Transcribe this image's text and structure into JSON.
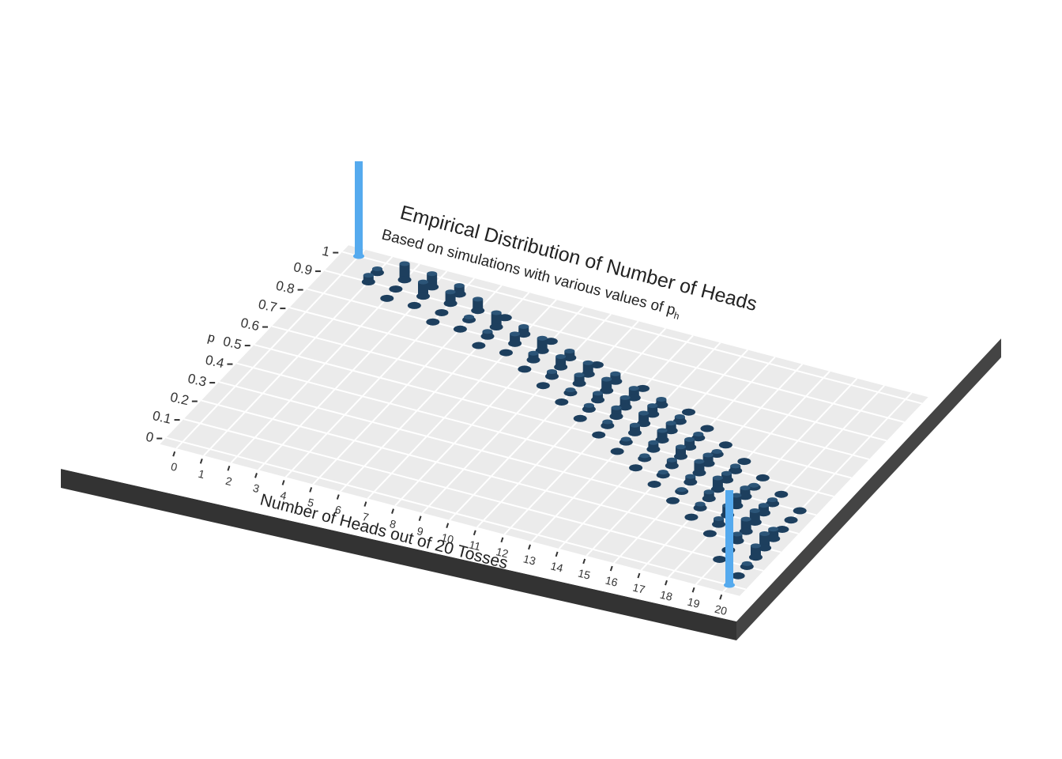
{
  "chart_data": {
    "type": "bar",
    "style": "3d-isometric-lollipop",
    "title": "Empirical Distribution of Number of Heads",
    "subtitle": "Based on simulations with various values of p",
    "subtitle_sub": "h",
    "xlabel": "Number of Heads out of 20 Tosses",
    "ylabel": "p",
    "x_ticks": [
      0,
      1,
      2,
      3,
      4,
      5,
      6,
      7,
      8,
      9,
      10,
      11,
      12,
      13,
      14,
      15,
      16,
      17,
      18,
      19,
      20
    ],
    "x_tick_labels": [
      "0",
      "1",
      "2",
      "3",
      "4",
      "5",
      "6",
      "7",
      "8",
      "9",
      "10",
      "11",
      "12",
      "13",
      "14",
      "15",
      "16",
      "17",
      "18",
      "19",
      "20"
    ],
    "y_ticks": [
      0,
      0.1,
      0.2,
      0.3,
      0.4,
      0.5,
      0.6,
      0.7,
      0.8,
      0.9,
      1
    ],
    "y_tick_labels": [
      "0",
      "0.1",
      "0.2",
      "0.3",
      "0.4",
      "0.5",
      "0.6",
      "0.7",
      "0.8",
      "0.9",
      "1"
    ],
    "xlim": [
      0,
      20
    ],
    "ylim": [
      0,
      1
    ],
    "grid": true,
    "colors": {
      "bar": "#1d3f5e",
      "highlight": "#55aaee",
      "panel": "#ebebeb",
      "slab_top": "#ffffff",
      "slab_side": "#333333"
    },
    "points": [
      {
        "x": 0,
        "p": 1.0,
        "v": 1.0,
        "highlight": true
      },
      {
        "x": 1,
        "p": 0.95,
        "v": 0.04
      },
      {
        "x": 2,
        "p": 0.95,
        "v": 0.17
      },
      {
        "x": 3,
        "p": 0.95,
        "v": 0.14
      },
      {
        "x": 4,
        "p": 0.95,
        "v": 0.09
      },
      {
        "x": 1,
        "p": 0.9,
        "v": 0.07
      },
      {
        "x": 2,
        "p": 0.9,
        "v": 0.0
      },
      {
        "x": 3,
        "p": 0.9,
        "v": 0.15
      },
      {
        "x": 4,
        "p": 0.9,
        "v": 0.12
      },
      {
        "x": 5,
        "p": 0.9,
        "v": 0.12
      },
      {
        "x": 6,
        "p": 0.9,
        "v": 0.0
      },
      {
        "x": 2,
        "p": 0.85,
        "v": 0.0
      },
      {
        "x": 3,
        "p": 0.85,
        "v": 0.0
      },
      {
        "x": 4,
        "p": 0.85,
        "v": 0.0
      },
      {
        "x": 5,
        "p": 0.85,
        "v": 0.03
      },
      {
        "x": 6,
        "p": 0.85,
        "v": 0.15
      },
      {
        "x": 7,
        "p": 0.85,
        "v": 0.08
      },
      {
        "x": 8,
        "p": 0.85,
        "v": 0.0
      },
      {
        "x": 4,
        "p": 0.8,
        "v": 0.0
      },
      {
        "x": 5,
        "p": 0.8,
        "v": 0.0
      },
      {
        "x": 6,
        "p": 0.8,
        "v": 0.05
      },
      {
        "x": 7,
        "p": 0.8,
        "v": 0.1
      },
      {
        "x": 8,
        "p": 0.8,
        "v": 0.13
      },
      {
        "x": 9,
        "p": 0.8,
        "v": 0.07
      },
      {
        "x": 10,
        "p": 0.8,
        "v": 0.0
      },
      {
        "x": 6,
        "p": 0.75,
        "v": 0.0
      },
      {
        "x": 7,
        "p": 0.75,
        "v": 0.0
      },
      {
        "x": 8,
        "p": 0.75,
        "v": 0.07
      },
      {
        "x": 9,
        "p": 0.75,
        "v": 0.11
      },
      {
        "x": 10,
        "p": 0.75,
        "v": 0.12
      },
      {
        "x": 11,
        "p": 0.75,
        "v": 0.08
      },
      {
        "x": 12,
        "p": 0.75,
        "v": 0.0
      },
      {
        "x": 8,
        "p": 0.7,
        "v": 0.0
      },
      {
        "x": 9,
        "p": 0.7,
        "v": 0.05
      },
      {
        "x": 10,
        "p": 0.7,
        "v": 0.09
      },
      {
        "x": 11,
        "p": 0.7,
        "v": 0.12
      },
      {
        "x": 12,
        "p": 0.7,
        "v": 0.1
      },
      {
        "x": 13,
        "p": 0.7,
        "v": 0.06
      },
      {
        "x": 14,
        "p": 0.7,
        "v": 0.0
      },
      {
        "x": 9,
        "p": 0.65,
        "v": 0.0
      },
      {
        "x": 10,
        "p": 0.65,
        "v": 0.03
      },
      {
        "x": 11,
        "p": 0.65,
        "v": 0.07
      },
      {
        "x": 12,
        "p": 0.65,
        "v": 0.1
      },
      {
        "x": 13,
        "p": 0.65,
        "v": 0.09
      },
      {
        "x": 14,
        "p": 0.65,
        "v": 0.05
      },
      {
        "x": 15,
        "p": 0.65,
        "v": 0.0
      },
      {
        "x": 10,
        "p": 0.6,
        "v": 0.0
      },
      {
        "x": 11,
        "p": 0.6,
        "v": 0.04
      },
      {
        "x": 12,
        "p": 0.6,
        "v": 0.09
      },
      {
        "x": 13,
        "p": 0.6,
        "v": 0.11
      },
      {
        "x": 14,
        "p": 0.6,
        "v": 0.08
      },
      {
        "x": 15,
        "p": 0.6,
        "v": 0.04
      },
      {
        "x": 16,
        "p": 0.6,
        "v": 0.0
      },
      {
        "x": 11,
        "p": 0.55,
        "v": 0.0
      },
      {
        "x": 12,
        "p": 0.55,
        "v": 0.04
      },
      {
        "x": 13,
        "p": 0.55,
        "v": 0.08
      },
      {
        "x": 14,
        "p": 0.55,
        "v": 0.1
      },
      {
        "x": 15,
        "p": 0.55,
        "v": 0.08
      },
      {
        "x": 16,
        "p": 0.55,
        "v": 0.03
      },
      {
        "x": 17,
        "p": 0.55,
        "v": 0.0
      },
      {
        "x": 12,
        "p": 0.5,
        "v": 0.0
      },
      {
        "x": 13,
        "p": 0.5,
        "v": 0.03
      },
      {
        "x": 14,
        "p": 0.5,
        "v": 0.07
      },
      {
        "x": 15,
        "p": 0.5,
        "v": 0.1
      },
      {
        "x": 16,
        "p": 0.5,
        "v": 0.09
      },
      {
        "x": 17,
        "p": 0.5,
        "v": 0.05
      },
      {
        "x": 18,
        "p": 0.5,
        "v": 0.0
      },
      {
        "x": 13,
        "p": 0.45,
        "v": 0.0
      },
      {
        "x": 14,
        "p": 0.45,
        "v": 0.03
      },
      {
        "x": 15,
        "p": 0.45,
        "v": 0.06
      },
      {
        "x": 16,
        "p": 0.45,
        "v": 0.12
      },
      {
        "x": 17,
        "p": 0.45,
        "v": 0.07
      },
      {
        "x": 18,
        "p": 0.45,
        "v": 0.02
      },
      {
        "x": 19,
        "p": 0.45,
        "v": 0.0
      },
      {
        "x": 14,
        "p": 0.4,
        "v": 0.0
      },
      {
        "x": 15,
        "p": 0.4,
        "v": 0.03
      },
      {
        "x": 16,
        "p": 0.4,
        "v": 0.06
      },
      {
        "x": 17,
        "p": 0.4,
        "v": 0.12
      },
      {
        "x": 18,
        "p": 0.4,
        "v": 0.09
      },
      {
        "x": 19,
        "p": 0.4,
        "v": 0.04
      },
      {
        "x": 20,
        "p": 0.4,
        "v": 0.0
      },
      {
        "x": 15,
        "p": 0.35,
        "v": 0.0
      },
      {
        "x": 16,
        "p": 0.35,
        "v": 0.02
      },
      {
        "x": 17,
        "p": 0.35,
        "v": 0.07
      },
      {
        "x": 18,
        "p": 0.35,
        "v": 0.11
      },
      {
        "x": 19,
        "p": 0.35,
        "v": 0.08
      },
      {
        "x": 20,
        "p": 0.35,
        "v": 0.0
      },
      {
        "x": 16,
        "p": 0.3,
        "v": 0.0
      },
      {
        "x": 17,
        "p": 0.3,
        "v": 0.04
      },
      {
        "x": 18,
        "p": 0.3,
        "v": 0.1
      },
      {
        "x": 19,
        "p": 0.3,
        "v": 0.12
      },
      {
        "x": 20,
        "p": 0.3,
        "v": 0.0
      },
      {
        "x": 17,
        "p": 0.25,
        "v": 0.0
      },
      {
        "x": 18,
        "p": 0.25,
        "v": 0.06
      },
      {
        "x": 19,
        "p": 0.25,
        "v": 0.13
      },
      {
        "x": 20,
        "p": 0.25,
        "v": 0.1
      },
      {
        "x": 18,
        "p": 0.2,
        "v": 0.0
      },
      {
        "x": 19,
        "p": 0.2,
        "v": 0.07
      },
      {
        "x": 20,
        "p": 0.2,
        "v": 0.15
      },
      {
        "x": 19,
        "p": 0.15,
        "v": 0.0
      },
      {
        "x": 20,
        "p": 0.15,
        "v": 0.12
      },
      {
        "x": 19,
        "p": 0.1,
        "v": 0.0
      },
      {
        "x": 20,
        "p": 0.1,
        "v": 0.03
      },
      {
        "x": 20,
        "p": 0.05,
        "v": 0.0
      },
      {
        "x": 20,
        "p": 0.0,
        "v": 1.0,
        "highlight": true
      }
    ]
  }
}
